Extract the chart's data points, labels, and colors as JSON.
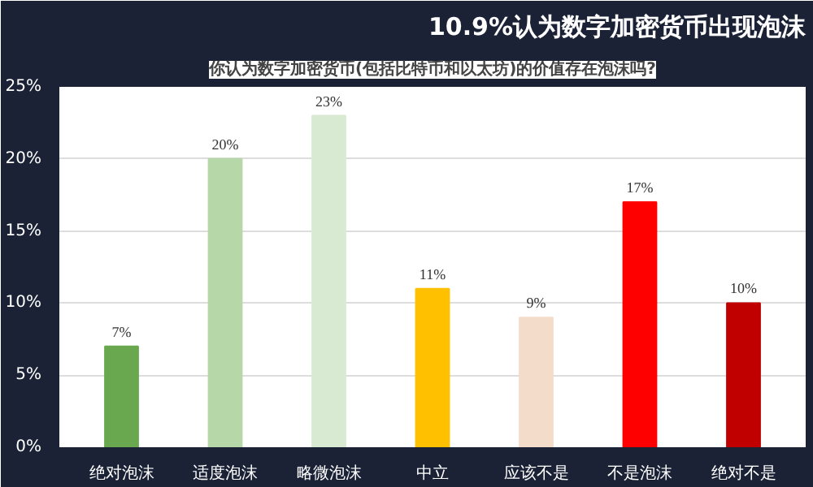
{
  "chart_data": {
    "type": "bar",
    "title": "10.9%认为数字加密货币出现泡沫",
    "subtitle": "你认为数字加密货币(包括比特币和以太坊)的价值存在泡沫吗?",
    "categories": [
      "绝对泡沫",
      "适度泡沫",
      "略微泡沫",
      "中立",
      "应该不是",
      "不是泡沫",
      "绝对不是"
    ],
    "values": [
      7,
      20,
      23,
      11,
      9,
      17,
      10
    ],
    "colors": [
      "#6aa84f",
      "#b6d7a8",
      "#d9ead3",
      "#ffc000",
      "#f4dccb",
      "#ff0000",
      "#c00000"
    ],
    "value_labels": [
      "7%",
      "20%",
      "23%",
      "11%",
      "9%",
      "17%",
      "10%"
    ],
    "ylim": [
      0,
      25
    ],
    "yticks": [
      {
        "value": 0,
        "label": "0%"
      },
      {
        "value": 5,
        "label": "5%"
      },
      {
        "value": 10,
        "label": "10%"
      },
      {
        "value": 15,
        "label": "15%"
      },
      {
        "value": 20,
        "label": "20%"
      },
      {
        "value": 25,
        "label": "25%"
      }
    ],
    "grid": "y"
  }
}
